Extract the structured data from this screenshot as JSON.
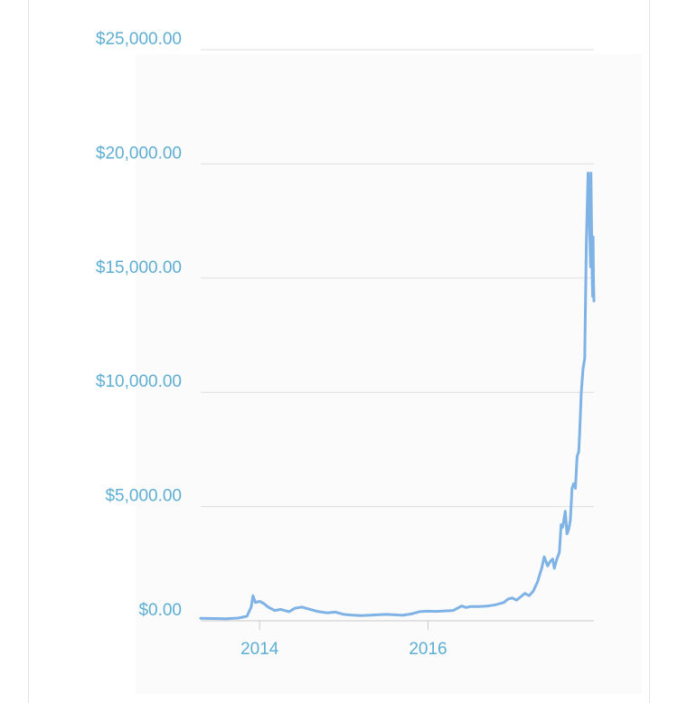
{
  "chart_data": {
    "type": "line",
    "title": "",
    "xlabel": "",
    "ylabel": "",
    "ylim": [
      0,
      25000
    ],
    "xlim": [
      2013.3,
      2017.97
    ],
    "grid": true,
    "yticks": [
      {
        "value": 0,
        "label": "$0.00"
      },
      {
        "value": 5000,
        "label": "$5,000.00"
      },
      {
        "value": 10000,
        "label": "$10,000.00"
      },
      {
        "value": 15000,
        "label": "$15,000.00"
      },
      {
        "value": 20000,
        "label": "$20,000.00"
      },
      {
        "value": 25000,
        "label": "$25,000.00"
      }
    ],
    "xticks": [
      {
        "value": 2014,
        "label": "2014"
      },
      {
        "value": 2016,
        "label": "2016"
      }
    ],
    "series": [
      {
        "color": "#7fb2e5",
        "x": [
          2013.3,
          2013.45,
          2013.6,
          2013.75,
          2013.85,
          2013.9,
          2013.92,
          2013.95,
          2014.0,
          2014.05,
          2014.1,
          2014.18,
          2014.25,
          2014.35,
          2014.42,
          2014.5,
          2014.6,
          2014.7,
          2014.8,
          2014.9,
          2015.0,
          2015.1,
          2015.2,
          2015.3,
          2015.4,
          2015.5,
          2015.6,
          2015.7,
          2015.8,
          2015.9,
          2016.0,
          2016.1,
          2016.2,
          2016.3,
          2016.4,
          2016.45,
          2016.5,
          2016.6,
          2016.7,
          2016.8,
          2016.9,
          2016.95,
          2017.0,
          2017.05,
          2017.1,
          2017.15,
          2017.2,
          2017.25,
          2017.3,
          2017.35,
          2017.38,
          2017.42,
          2017.45,
          2017.48,
          2017.5,
          2017.53,
          2017.56,
          2017.58,
          2017.6,
          2017.63,
          2017.65,
          2017.67,
          2017.69,
          2017.71,
          2017.73,
          2017.75,
          2017.77,
          2017.79,
          2017.8,
          2017.82,
          2017.84,
          2017.86,
          2017.88,
          2017.9,
          2017.91,
          2017.92,
          2017.93,
          2017.935,
          2017.94,
          2017.945,
          2017.95,
          2017.955,
          2017.96,
          2017.965,
          2017.97
        ],
        "y": [
          110,
          100,
          90,
          120,
          200,
          600,
          1100,
          800,
          850,
          750,
          600,
          450,
          500,
          400,
          550,
          600,
          500,
          400,
          350,
          380,
          280,
          250,
          230,
          240,
          260,
          280,
          260,
          240,
          300,
          400,
          420,
          410,
          430,
          450,
          650,
          580,
          620,
          620,
          640,
          700,
          800,
          950,
          1000,
          900,
          1050,
          1200,
          1100,
          1300,
          1700,
          2300,
          2800,
          2400,
          2600,
          2700,
          2300,
          2700,
          3000,
          4200,
          4100,
          4800,
          3800,
          4000,
          4400,
          5800,
          6000,
          5800,
          7200,
          7400,
          8200,
          10000,
          11000,
          11500,
          16500,
          19600,
          18500,
          17000,
          15500,
          19600,
          17800,
          16200,
          15000,
          14200,
          16800,
          15000,
          14000
        ]
      }
    ]
  }
}
